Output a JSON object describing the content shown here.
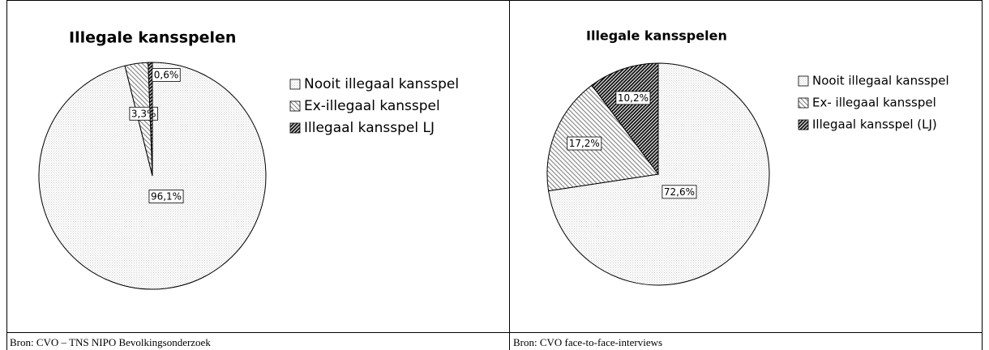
{
  "chart_data": [
    {
      "type": "pie",
      "title": "Illegale kansspelen",
      "categories": [
        "Nooit illegaal kansspel",
        "Ex-illegaal kansspel",
        "Illegaal kansspel LJ"
      ],
      "values": [
        96.1,
        3.3,
        0.6
      ],
      "value_labels": [
        "96,1%",
        "3,3%",
        "0,6%"
      ],
      "colors": [
        "#cfcfcf",
        "#8a8a8a",
        "#1a1a1a"
      ],
      "source": "Bron: CVO – TNS NIPO Bevolkingsonderzoek"
    },
    {
      "type": "pie",
      "title": "Illegale kansspelen",
      "categories": [
        "Nooit illegaal kansspel",
        "Ex- illegaal kansspel",
        "Illegaal kansspel (LJ)"
      ],
      "values": [
        72.6,
        17.2,
        10.2
      ],
      "value_labels": [
        "72,6%",
        "17,2%",
        "10,2%"
      ],
      "colors": [
        "#cfcfcf",
        "#8a8a8a",
        "#1a1a1a"
      ],
      "source": "Bron: CVO face-to-face-interviews"
    }
  ]
}
